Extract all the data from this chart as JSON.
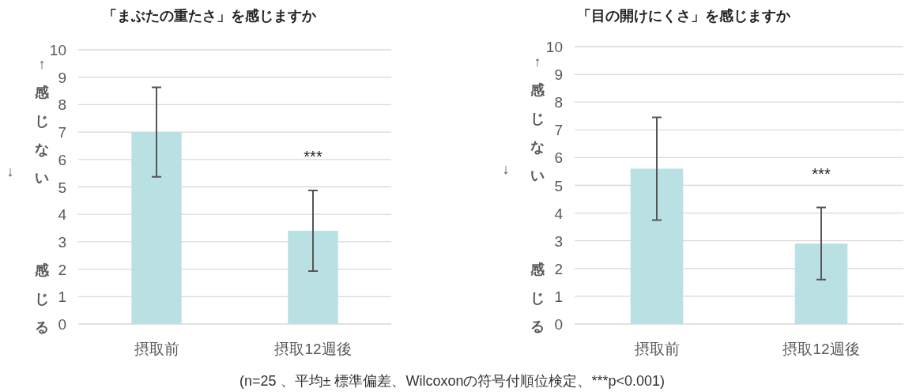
{
  "chart_data": [
    {
      "type": "bar",
      "title": "「まぶたの重たさ」を感じますか",
      "categories": [
        "摂取前",
        "摂取12週後"
      ],
      "values": [
        7.0,
        3.4
      ],
      "errors": [
        1.63,
        1.47
      ],
      "color": "#b9e0e3",
      "ylim": [
        0,
        10
      ],
      "yticks": [
        0,
        1,
        2,
        3,
        4,
        5,
        6,
        7,
        8,
        9,
        10
      ],
      "grid": "y",
      "annotations": [
        "↑感じない",
        "↓",
        "感じる",
        "***",
        "(n=25 、平均± 標準偏差、Wilcoxonの符号付順位検定、***p<0.001)"
      ]
    },
    {
      "type": "bar",
      "title": "「目の開けにくさ」を感じますか",
      "categories": [
        "摂取前",
        "摂取12週後"
      ],
      "values": [
        5.6,
        2.9
      ],
      "errors": [
        1.85,
        1.3
      ],
      "color": "#b9e0e3",
      "ylim": [
        0,
        10
      ],
      "yticks": [
        0,
        1,
        2,
        3,
        4,
        5,
        6,
        7,
        8,
        9,
        10
      ],
      "grid": "y",
      "annotations": [
        "↑感じない",
        "↓",
        "感じる",
        "***"
      ]
    }
  ]
}
